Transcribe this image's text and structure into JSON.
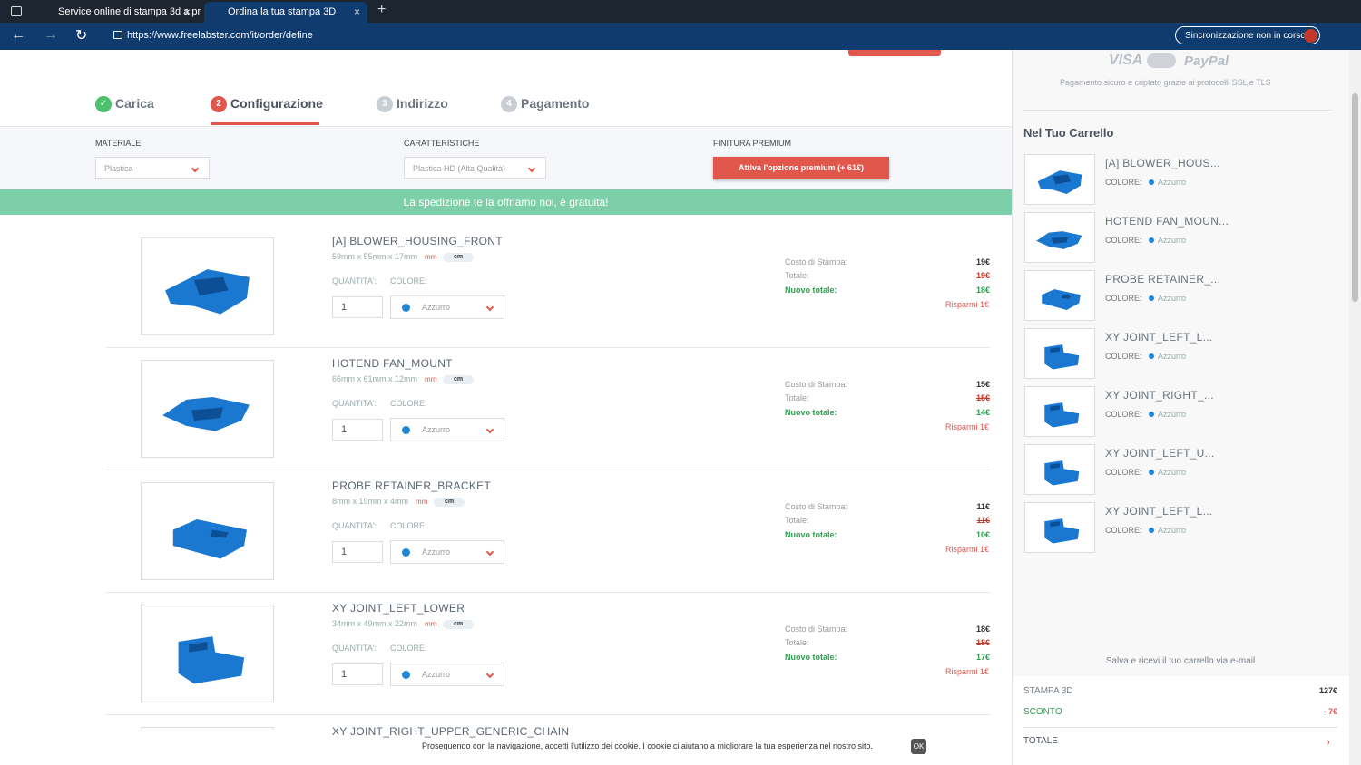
{
  "browser": {
    "tabs": [
      "Service online di stampa 3d a pr",
      "Ordina la tua stampa 3D"
    ],
    "url": "https://www.freelabster.com/it/order/define",
    "sync": "Sincronizzazione non in corso"
  },
  "steps": [
    {
      "label": "Carica"
    },
    {
      "number": "2",
      "label": "Configurazione"
    },
    {
      "number": "3",
      "label": "Indirizzo"
    },
    {
      "number": "4",
      "label": "Pagamento"
    }
  ],
  "options": {
    "material": {
      "label": "MATERIALE",
      "value": "Plastica"
    },
    "features": {
      "label": "CARATTERISTICHE",
      "value": "Plastica HD (Alta Qualità)"
    },
    "premium": {
      "label": "FINITURA PREMIUM",
      "button": "Attiva l'opzione premium (+ 61€)"
    }
  },
  "banner": "La spedizione te la offriamo noi, è gratuita!",
  "labels": {
    "mm": "mm",
    "cm": "cm",
    "quantity": "QUANTITA':",
    "color": "COLORE:",
    "cost": "Costo di Stampa:",
    "total": "Totale:",
    "new_total": "Nuovo totale:"
  },
  "items": [
    {
      "name": "[A] BLOWER_HOUSING_FRONT",
      "dims": "59mm x 55mm x 17mm",
      "quantity": "1",
      "color": "Azzurro",
      "cost": "19€",
      "total": "19€",
      "new_total": "18€",
      "saving": "Risparmi 1€"
    },
    {
      "name": "HOTEND FAN_MOUNT",
      "dims": "66mm x 61mm x 12mm",
      "quantity": "1",
      "color": "Azzurro",
      "cost": "15€",
      "total": "15€",
      "new_total": "14€",
      "saving": "Risparmi 1€"
    },
    {
      "name": "PROBE RETAINER_BRACKET",
      "dims": "8mm x 19mm x 4mm",
      "quantity": "1",
      "color": "Azzurro",
      "cost": "11€",
      "total": "11€",
      "new_total": "10€",
      "saving": "Risparmi 1€"
    },
    {
      "name": "XY JOINT_LEFT_LOWER",
      "dims": "34mm x 49mm x 22mm",
      "quantity": "1",
      "color": "Azzurro",
      "cost": "18€",
      "total": "18€",
      "new_total": "17€",
      "saving": "Risparmi 1€"
    }
  ],
  "next_item": "XY JOINT_RIGHT_UPPER_GENERIC_CHAIN",
  "sidebar": {
    "payment_logos": [
      "VISA",
      "PayPal"
    ],
    "payment_note": "Pagamento sicuro e criptato grazie ai protocolli SSL e TLS",
    "cart_title": "Nel Tuo Carrello",
    "cart_items": [
      "[A] BLOWER_HOUS...",
      "HOTEND FAN_MOUN...",
      "PROBE RETAINER_...",
      "XY JOINT_LEFT_L...",
      "XY JOINT_RIGHT_...",
      "XY JOINT_LEFT_U...",
      "XY JOINT_LEFT_L..."
    ],
    "cart_color": "Azzurro",
    "save_email": "Salva e ricevi il tuo carrello via e-mail",
    "summary": {
      "print_label": "STAMPA 3D",
      "print_value": "127€",
      "discount_label": "SCONTO",
      "discount_value": "- 7€",
      "total_label": "TOTALE"
    }
  },
  "cookie": {
    "text": "Proseguendo con la navigazione, accetti l'utilizzo dei cookie. I cookie ci aiutano a migliorare la tua esperienza nel nostro sito.",
    "button": "OK"
  }
}
